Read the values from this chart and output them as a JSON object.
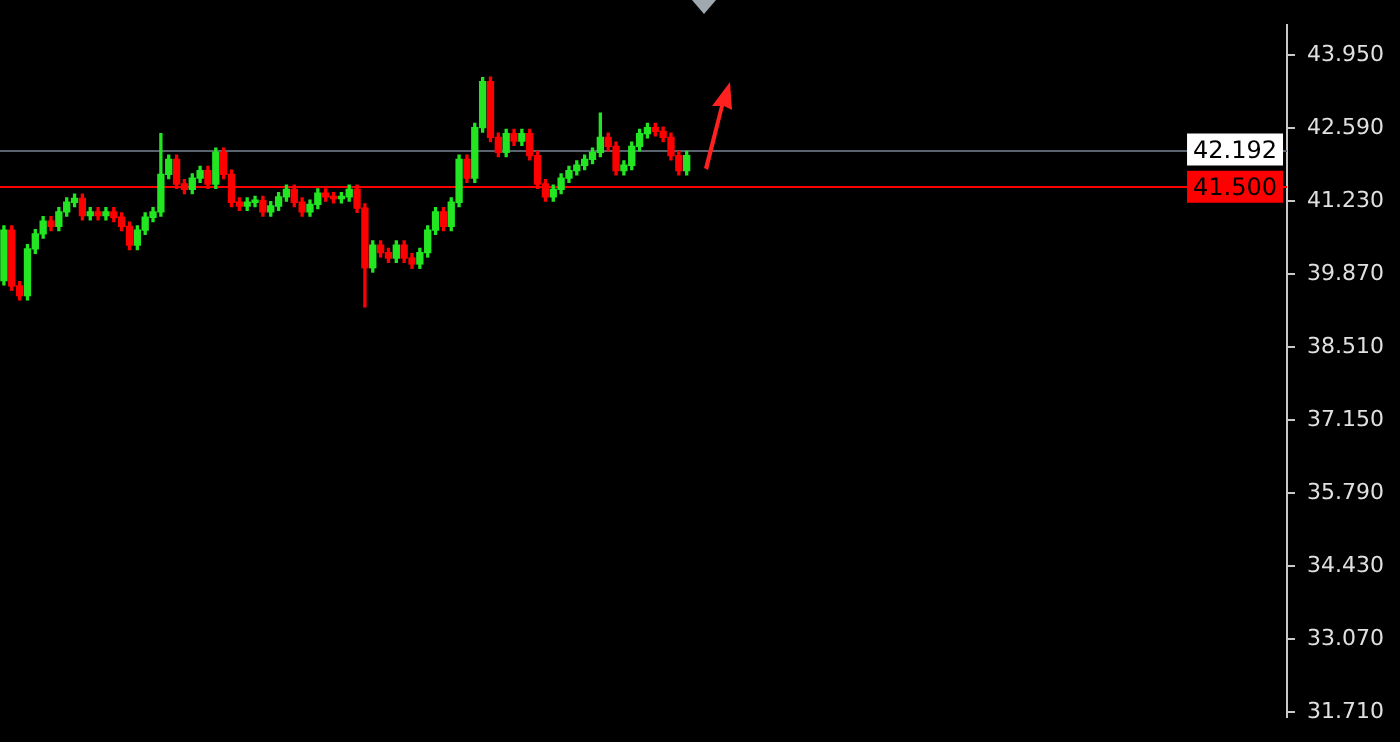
{
  "chart_data": {
    "type": "candlestick",
    "categories": [
      null,
      null,
      null,
      null,
      null,
      null,
      null,
      null,
      null,
      null,
      null,
      null,
      null,
      null,
      null,
      null,
      null,
      null,
      null,
      null,
      null,
      null,
      null,
      null,
      null,
      null,
      null,
      null,
      null,
      null,
      null,
      null,
      null,
      null,
      null,
      null,
      null,
      null,
      null,
      null,
      null,
      null,
      null,
      null,
      null,
      null,
      null,
      null,
      null,
      null,
      null,
      null,
      null,
      null,
      null,
      null,
      null,
      null,
      null,
      null,
      null,
      null,
      null,
      null,
      null,
      null,
      null,
      null,
      null,
      null,
      null,
      null,
      null,
      null,
      null,
      null,
      null,
      null,
      null,
      null,
      null,
      null,
      null,
      null,
      null,
      null,
      null,
      null,
      null,
      null,
      null,
      null,
      null,
      null,
      null,
      null,
      null,
      null,
      null,
      null,
      null,
      null,
      null,
      null,
      null,
      null,
      null,
      null,
      null,
      null,
      null,
      null,
      null,
      null,
      null,
      null,
      null,
      null,
      null,
      null,
      null,
      null,
      null,
      null,
      null,
      null,
      null,
      null,
      null,
      null,
      null,
      null,
      null,
      null,
      null,
      null,
      null,
      null,
      null,
      null,
      null,
      null,
      null,
      null,
      null,
      null,
      null,
      null,
      null,
      null,
      null,
      null,
      null,
      null,
      null,
      null,
      null,
      null,
      null,
      null,
      null,
      null,
      null,
      null
    ],
    "ohlc": [
      [
        39.75,
        40.77,
        39.67,
        40.69
      ],
      [
        40.69,
        40.77,
        39.57,
        39.65
      ],
      [
        39.65,
        39.73,
        39.39,
        39.47
      ],
      [
        39.47,
        40.42,
        39.39,
        40.34
      ],
      [
        40.34,
        40.7,
        40.26,
        40.62
      ],
      [
        40.62,
        40.94,
        40.54,
        40.86
      ],
      [
        40.86,
        40.94,
        40.68,
        40.76
      ],
      [
        40.76,
        41.11,
        40.68,
        41.03
      ],
      [
        41.03,
        41.29,
        40.95,
        41.21
      ],
      [
        41.21,
        41.36,
        41.13,
        41.28
      ],
      [
        41.28,
        41.36,
        40.88,
        40.96
      ],
      [
        40.96,
        41.11,
        40.88,
        41.03
      ],
      [
        41.03,
        41.11,
        40.88,
        40.96
      ],
      [
        40.96,
        41.11,
        40.88,
        41.03
      ],
      [
        41.03,
        41.11,
        40.85,
        40.93
      ],
      [
        40.93,
        41.01,
        40.68,
        40.76
      ],
      [
        40.76,
        40.84,
        40.33,
        40.41
      ],
      [
        40.41,
        40.77,
        40.33,
        40.69
      ],
      [
        40.69,
        41.01,
        40.61,
        40.93
      ],
      [
        40.93,
        41.11,
        40.85,
        41.03
      ],
      [
        41.03,
        42.49,
        40.95,
        41.73
      ],
      [
        41.73,
        42.09,
        41.65,
        42.01
      ],
      [
        42.01,
        42.09,
        41.47,
        41.55
      ],
      [
        41.55,
        41.63,
        41.37,
        41.45
      ],
      [
        41.45,
        41.74,
        41.37,
        41.66
      ],
      [
        41.66,
        41.88,
        41.58,
        41.8
      ],
      [
        41.8,
        41.88,
        41.47,
        41.55
      ],
      [
        41.55,
        42.22,
        41.47,
        42.14
      ],
      [
        42.14,
        42.22,
        41.65,
        41.73
      ],
      [
        41.73,
        41.81,
        41.13,
        41.21
      ],
      [
        41.21,
        41.29,
        41.06,
        41.14
      ],
      [
        41.14,
        41.29,
        41.06,
        41.21
      ],
      [
        41.21,
        41.32,
        41.13,
        41.24
      ],
      [
        41.24,
        41.32,
        40.95,
        41.03
      ],
      [
        41.03,
        41.22,
        40.95,
        41.14
      ],
      [
        41.14,
        41.39,
        41.06,
        41.31
      ],
      [
        41.31,
        41.53,
        41.23,
        41.45
      ],
      [
        41.45,
        41.53,
        41.13,
        41.21
      ],
      [
        41.21,
        41.29,
        40.95,
        41.03
      ],
      [
        41.03,
        41.25,
        40.95,
        41.17
      ],
      [
        41.17,
        41.46,
        41.09,
        41.38
      ],
      [
        41.38,
        41.46,
        41.23,
        41.31
      ],
      [
        41.31,
        41.39,
        41.2,
        41.28
      ],
      [
        41.28,
        41.39,
        41.2,
        41.31
      ],
      [
        41.31,
        41.53,
        41.23,
        41.45
      ],
      [
        41.45,
        41.53,
        41.02,
        41.1
      ],
      [
        41.1,
        41.18,
        39.26,
        39.99
      ],
      [
        39.99,
        40.49,
        39.91,
        40.41
      ],
      [
        40.41,
        40.49,
        40.19,
        40.27
      ],
      [
        40.27,
        40.35,
        40.09,
        40.17
      ],
      [
        40.17,
        40.49,
        40.09,
        40.41
      ],
      [
        40.41,
        40.49,
        40.09,
        40.17
      ],
      [
        40.17,
        40.25,
        39.98,
        40.06
      ],
      [
        40.06,
        40.35,
        39.98,
        40.27
      ],
      [
        40.27,
        40.77,
        40.19,
        40.69
      ],
      [
        40.69,
        41.11,
        40.61,
        41.03
      ],
      [
        41.03,
        41.11,
        40.68,
        40.76
      ],
      [
        40.76,
        41.29,
        40.68,
        41.21
      ],
      [
        41.21,
        42.09,
        41.13,
        42.01
      ],
      [
        42.01,
        42.09,
        41.58,
        41.66
      ],
      [
        41.66,
        42.68,
        41.58,
        42.6
      ],
      [
        42.6,
        43.53,
        42.52,
        43.46
      ],
      [
        43.46,
        43.54,
        42.34,
        42.42
      ],
      [
        42.42,
        42.5,
        42.06,
        42.14
      ],
      [
        42.14,
        42.57,
        42.06,
        42.49
      ],
      [
        42.49,
        42.57,
        42.27,
        42.35
      ],
      [
        42.35,
        42.57,
        42.27,
        42.49
      ],
      [
        42.49,
        42.57,
        42.0,
        42.08
      ],
      [
        42.08,
        42.16,
        41.47,
        41.55
      ],
      [
        41.55,
        41.63,
        41.23,
        41.31
      ],
      [
        41.31,
        41.53,
        41.23,
        41.45
      ],
      [
        41.45,
        41.74,
        41.37,
        41.66
      ],
      [
        41.66,
        41.88,
        41.58,
        41.8
      ],
      [
        41.8,
        41.98,
        41.72,
        41.9
      ],
      [
        41.9,
        42.09,
        41.82,
        42.01
      ],
      [
        42.01,
        42.22,
        41.93,
        42.14
      ],
      [
        42.14,
        42.87,
        42.06,
        42.42
      ],
      [
        42.42,
        42.5,
        42.17,
        42.25
      ],
      [
        42.25,
        42.33,
        41.72,
        41.8
      ],
      [
        41.8,
        41.98,
        41.72,
        41.9
      ],
      [
        41.9,
        42.33,
        41.82,
        42.25
      ],
      [
        42.25,
        42.57,
        42.17,
        42.49
      ],
      [
        42.49,
        42.68,
        42.41,
        42.6
      ],
      [
        42.6,
        42.68,
        42.45,
        42.53
      ],
      [
        42.53,
        42.61,
        42.34,
        42.42
      ],
      [
        42.42,
        42.5,
        42.0,
        42.08
      ],
      [
        42.08,
        42.16,
        41.72,
        41.8
      ],
      [
        41.8,
        42.16,
        41.72,
        42.08
      ],
      null,
      null,
      null,
      null,
      null,
      null,
      null,
      null,
      null,
      null,
      null,
      null,
      null,
      null,
      null,
      null,
      null,
      null,
      null,
      null,
      null,
      null,
      null,
      null,
      null,
      null,
      null,
      null,
      null,
      null,
      null,
      null,
      null,
      null,
      null,
      null,
      null,
      null,
      null,
      null,
      null,
      null,
      null,
      null,
      null,
      null,
      null,
      null,
      null,
      null,
      null,
      null,
      null,
      null,
      null,
      null,
      null,
      null,
      null,
      null,
      null,
      null,
      null,
      null,
      null,
      null,
      null,
      null,
      null,
      null,
      null,
      null,
      null,
      null,
      null,
      null
    ],
    "colors": [
      "#22e622",
      "#ff0000",
      "#ff0000",
      "#22e622",
      "#22e622",
      "#22e622",
      "#ff0000",
      "#22e622",
      "#22e622",
      "#22e622",
      "#ff0000",
      "#22e622",
      "#ff0000",
      "#22e622",
      "#ff0000",
      "#ff0000",
      "#ff0000",
      "#22e622",
      "#22e622",
      "#22e622",
      "#22e622",
      "#22e622",
      "#ff0000",
      "#ff0000",
      "#22e622",
      "#22e622",
      "#ff0000",
      "#22e622",
      "#ff0000",
      "#ff0000",
      "#ff0000",
      "#22e622",
      "#22e622",
      "#ff0000",
      "#22e622",
      "#22e622",
      "#22e622",
      "#ff0000",
      "#ff0000",
      "#22e622",
      "#22e622",
      "#ff0000",
      "#ff0000",
      "#22e622",
      "#22e622",
      "#ff0000",
      "#ff0000",
      "#22e622",
      "#ff0000",
      "#ff0000",
      "#22e622",
      "#ff0000",
      "#ff0000",
      "#22e622",
      "#22e622",
      "#22e622",
      "#ff0000",
      "#22e622",
      "#22e622",
      "#ff0000",
      "#22e622",
      "#22e622",
      "#ff0000",
      "#ff0000",
      "#22e622",
      "#ff0000",
      "#22e622",
      "#ff0000",
      "#ff0000",
      "#ff0000",
      "#22e622",
      "#22e622",
      "#22e622",
      "#22e622",
      "#22e622",
      "#22e622",
      "#22e622",
      "#ff0000",
      "#ff0000",
      "#22e622",
      "#22e622",
      "#22e622",
      "#22e622",
      "#ff0000",
      "#ff0000",
      "#ff0000",
      "#ff0000",
      "#22e622",
      null,
      null,
      null,
      null,
      null,
      null,
      null,
      null,
      null,
      null,
      null,
      null,
      null,
      null,
      null,
      null,
      null,
      null,
      null,
      null,
      null,
      null,
      null,
      null,
      null,
      null,
      null,
      null,
      null,
      null,
      null,
      null,
      null,
      null,
      null,
      null,
      null,
      null,
      null,
      null,
      null,
      null,
      null,
      null,
      null,
      null,
      null,
      null,
      null,
      null,
      null,
      null,
      null,
      null,
      null,
      null,
      null,
      null,
      null,
      null,
      null,
      null,
      null,
      null,
      null,
      null,
      null,
      null,
      null,
      null,
      null,
      null,
      null,
      null,
      null,
      null
    ],
    "ylim": [
      31.62,
      44.51
    ],
    "yticks": [
      {
        "value": 43.95,
        "label": "43.950"
      },
      {
        "value": 42.59,
        "label": "42.590"
      },
      {
        "value": 41.23,
        "label": "41.230"
      },
      {
        "value": 39.87,
        "label": "39.870"
      },
      {
        "value": 38.51,
        "label": "38.510"
      },
      {
        "value": 37.15,
        "label": "37.150"
      },
      {
        "value": 35.79,
        "label": "35.790"
      },
      {
        "value": 34.43,
        "label": "34.430"
      },
      {
        "value": 33.07,
        "label": "33.070"
      },
      {
        "value": 31.71,
        "label": "31.710"
      }
    ],
    "ref_lines": [
      {
        "axis": "y",
        "value": 42.192,
        "label": "42.192",
        "color": "#5a6470"
      },
      {
        "axis": "y",
        "value": 41.5,
        "label": "41.500",
        "color": "#ff0000"
      }
    ],
    "tick_labels": "y",
    "grid": false,
    "legend": false
  }
}
